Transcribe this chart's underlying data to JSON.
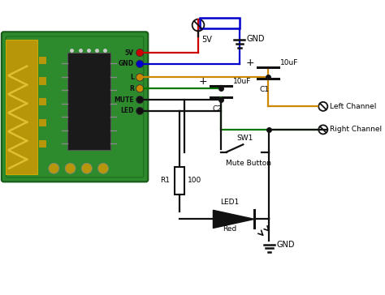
{
  "bg_color": "#ffffff",
  "colors": {
    "red": "#cc0000",
    "blue": "#0000cc",
    "green": "#007700",
    "orange": "#cc8800",
    "black": "#111111",
    "board_green": "#2d8a2d",
    "board_yellow": "#b8960a",
    "chip_black": "#111111"
  },
  "pin_labels": [
    "5V",
    "GND",
    "L",
    "R",
    "MUTE",
    "LED"
  ],
  "labels": {
    "5v": "5V",
    "gnd_top": "GND",
    "c1": "C1",
    "c2": "C2",
    "10uf": "10uF",
    "plus": "+",
    "r1": "R1",
    "val100": "100",
    "sw1": "SW1",
    "mute": "Mute Button",
    "red": "Red",
    "led1": "LED1",
    "gnd2": "GND",
    "left_ch": "Left Channel",
    "right_ch": "Right Channel"
  }
}
